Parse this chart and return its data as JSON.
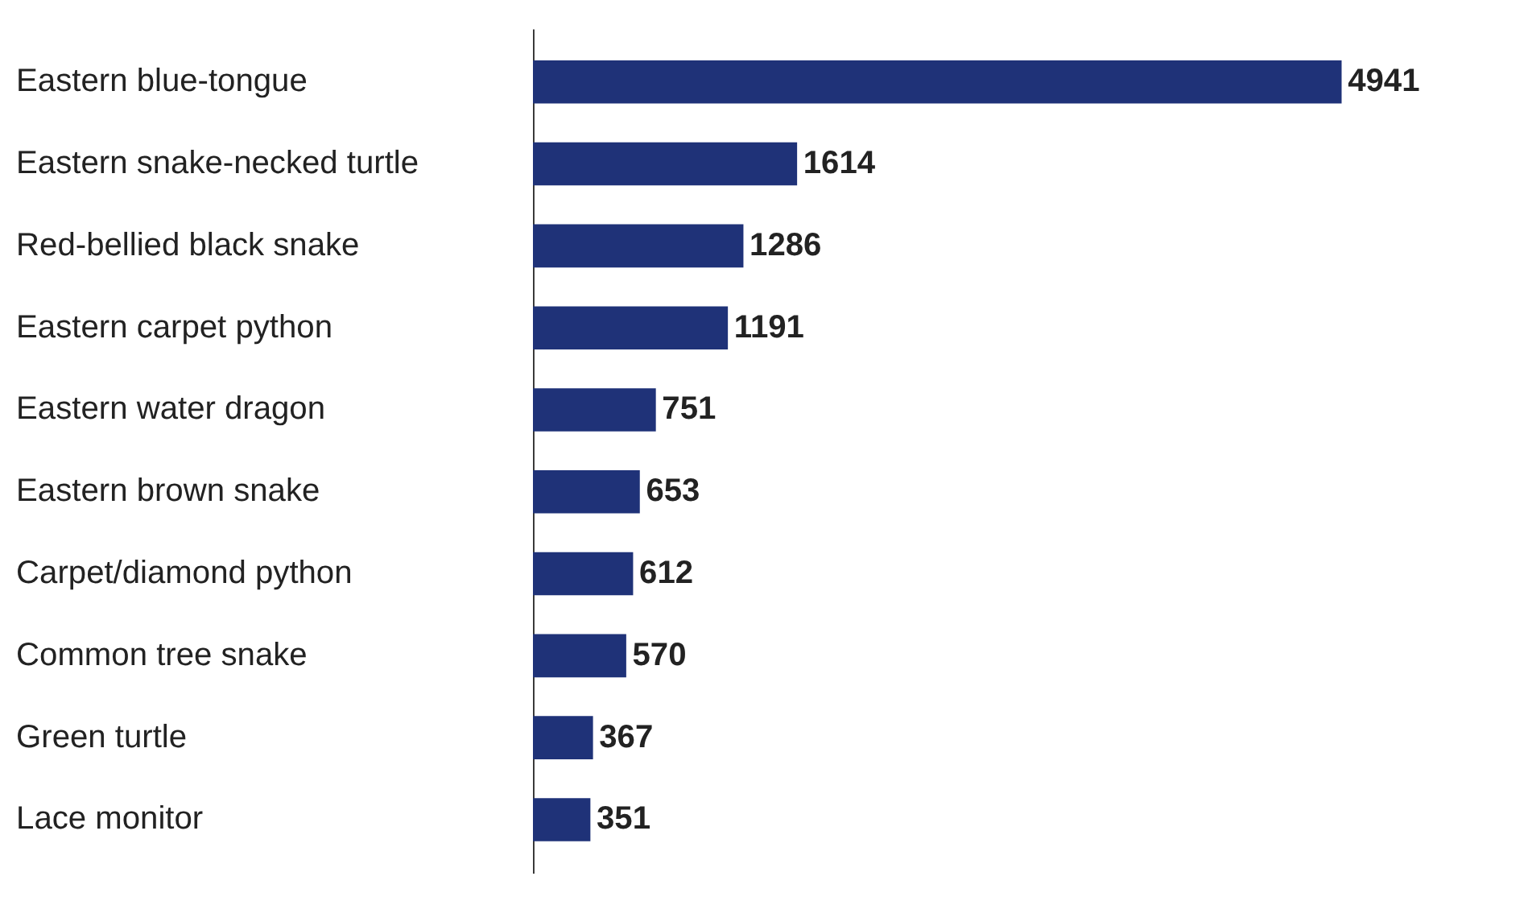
{
  "chart_data": {
    "type": "bar",
    "orientation": "horizontal",
    "categories": [
      "Eastern blue-tongue",
      "Eastern snake-necked turtle",
      "Red-bellied black snake",
      "Eastern carpet python",
      "Eastern water dragon",
      "Eastern brown snake",
      "Carpet/diamond python",
      "Common tree snake",
      "Green turtle",
      "Lace monitor"
    ],
    "values": [
      4941,
      1614,
      1286,
      1191,
      751,
      653,
      612,
      570,
      367,
      351
    ],
    "color": "#1f3278",
    "data_labels": true,
    "grid": false
  }
}
